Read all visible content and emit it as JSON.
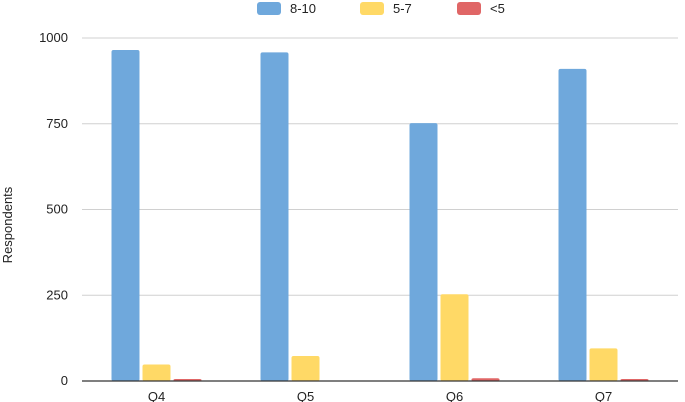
{
  "chart_data": {
    "type": "bar",
    "title": "",
    "xlabel": "",
    "ylabel": "Respondents",
    "ylim": [
      0,
      1000
    ],
    "yticks": [
      0,
      250,
      500,
      750,
      1000
    ],
    "categories": [
      "Q4",
      "Q5",
      "Q6",
      "Q7"
    ],
    "series": [
      {
        "name": "8-10",
        "color": "#6fa8dc",
        "values": [
          965,
          958,
          752,
          910
        ]
      },
      {
        "name": "5-7",
        "color": "#ffd966",
        "values": [
          48,
          73,
          253,
          95
        ]
      },
      {
        "name": "<5",
        "color": "#e06666",
        "values": [
          2,
          0,
          8,
          2
        ]
      }
    ],
    "legend": "top-center",
    "grid": true
  }
}
